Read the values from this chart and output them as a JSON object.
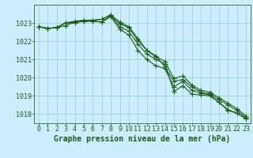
{
  "background_color": "#cceeff",
  "plot_bg_color": "#cceeff",
  "grid_color": "#99cccc",
  "line_color": "#1a5c1a",
  "title": "Graphe pression niveau de la mer (hPa)",
  "xlim": [
    -0.5,
    23.5
  ],
  "ylim": [
    1017.5,
    1024.0
  ],
  "yticks": [
    1018,
    1019,
    1020,
    1021,
    1022,
    1023
  ],
  "xticks": [
    0,
    1,
    2,
    3,
    4,
    5,
    6,
    7,
    8,
    9,
    10,
    11,
    12,
    13,
    14,
    15,
    16,
    17,
    18,
    19,
    20,
    21,
    22,
    23
  ],
  "series": [
    [
      1022.8,
      1022.7,
      1022.75,
      1022.85,
      1023.05,
      1023.1,
      1023.1,
      1023.05,
      1023.4,
      1022.8,
      1022.55,
      1021.85,
      1021.3,
      1021.0,
      1020.75,
      1019.25,
      1019.55,
      1019.1,
      1019.05,
      1019.0,
      1018.65,
      1018.25,
      1018.05,
      1017.75
    ],
    [
      1022.8,
      1022.7,
      1022.75,
      1023.0,
      1023.05,
      1023.15,
      1023.15,
      1023.2,
      1023.45,
      1023.05,
      1022.8,
      1022.15,
      1021.5,
      1021.2,
      1020.6,
      1019.8,
      1019.9,
      1019.5,
      1019.2,
      1019.1,
      1018.8,
      1018.5,
      1018.2,
      1017.8
    ],
    [
      1022.8,
      1022.7,
      1022.75,
      1023.0,
      1023.1,
      1023.15,
      1023.15,
      1023.2,
      1023.45,
      1022.95,
      1022.75,
      1022.05,
      1021.5,
      1021.15,
      1020.9,
      1019.95,
      1020.1,
      1019.6,
      1019.3,
      1019.2,
      1018.9,
      1018.6,
      1018.3,
      1017.9
    ],
    [
      1022.8,
      1022.7,
      1022.75,
      1023.0,
      1023.0,
      1023.1,
      1023.1,
      1023.05,
      1023.35,
      1022.65,
      1022.35,
      1021.5,
      1021.0,
      1020.65,
      1020.5,
      1019.5,
      1019.8,
      1019.3,
      1019.15,
      1019.05,
      1018.65,
      1018.2,
      1018.05,
      1017.75
    ]
  ],
  "marker": "+",
  "marker_size": 4,
  "line_width": 0.8,
  "title_fontsize": 7,
  "tick_fontsize": 6,
  "xlabel_color": "#1a5c1a"
}
